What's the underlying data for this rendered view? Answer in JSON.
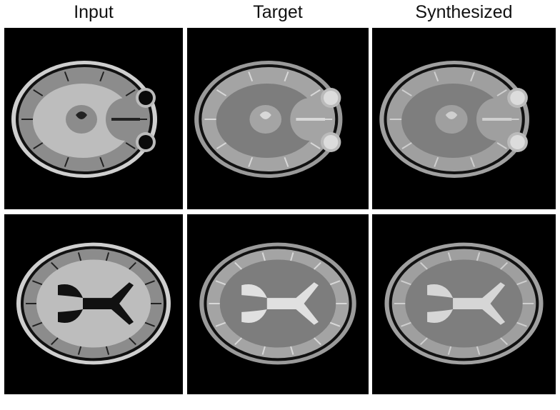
{
  "columns": [
    {
      "label": "Input"
    },
    {
      "label": "Target"
    },
    {
      "label": "Synthesized"
    }
  ],
  "rows": [
    {
      "slice": "axial-low",
      "cells": [
        {
          "variant": "input",
          "image": "brain-mri-axial-slice"
        },
        {
          "variant": "target",
          "image": "brain-mri-axial-slice"
        },
        {
          "variant": "synth",
          "image": "brain-mri-axial-slice"
        }
      ]
    },
    {
      "slice": "axial-ventricles",
      "cells": [
        {
          "variant": "input",
          "image": "brain-mri-axial-slice"
        },
        {
          "variant": "target",
          "image": "brain-mri-axial-slice"
        },
        {
          "variant": "synth",
          "image": "brain-mri-axial-slice"
        }
      ]
    }
  ]
}
